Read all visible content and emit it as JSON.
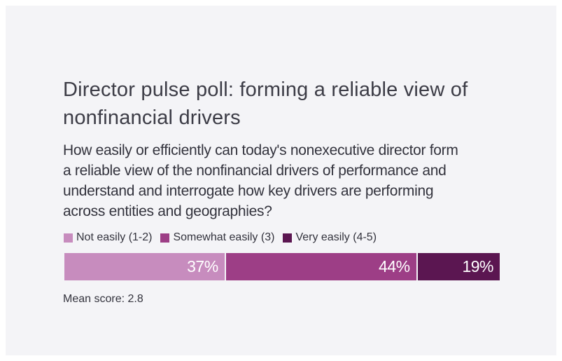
{
  "colors": {
    "panel_background": "#f4f4f7",
    "text_primary": "#3c3c46",
    "bar_gap": "#ffffff"
  },
  "header": {
    "title": "Director pulse poll: forming a reliable view of nonfinancial drivers",
    "question": "How easily or efficiently can today's nonexecutive director form a reliable view of the nonfinancial drivers of performance and understand and interrogate how key drivers are performing across entities and geographies?"
  },
  "footer": {
    "mean_score_text": "Mean score: 2.8"
  },
  "chart_data": {
    "type": "bar",
    "variant": "horizontal-stacked",
    "title": "Director pulse poll: forming a reliable view of nonfinancial drivers",
    "subtitle": "How easily or efficiently can today's nonexecutive director form a reliable view of the nonfinancial drivers of performance and understand and interrogate how key drivers are performing across entities and geographies?",
    "legend_position": "top",
    "grid": false,
    "value_unit": "%",
    "xlim": [
      0,
      100
    ],
    "series": [
      {
        "name": "Not easily (1-2)",
        "value": 37,
        "label": "37%",
        "color": "#c78cbe"
      },
      {
        "name": "Somewhat easily (3)",
        "value": 44,
        "label": "44%",
        "color": "#9d3e86"
      },
      {
        "name": "Very easily (4-5)",
        "value": 19,
        "label": "19%",
        "color": "#5b1651"
      }
    ],
    "mean_score": 2.8
  }
}
